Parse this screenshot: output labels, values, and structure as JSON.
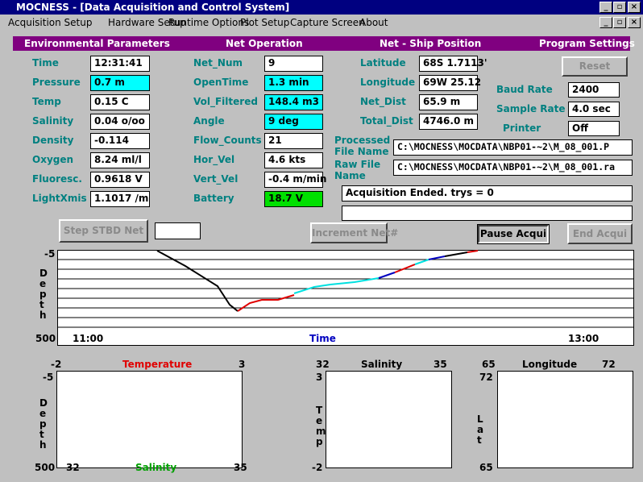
{
  "window": {
    "title": "MOCNESS - [Data Acquisition and Control System]"
  },
  "menu": [
    "Acquisition Setup",
    "Hardware Setup",
    "Runtime Options",
    "Plot Setup",
    "Capture Screen",
    "About"
  ],
  "sections": [
    "Environmental Parameters",
    "Net Operation",
    "Net - Ship Position",
    "Program Settings"
  ],
  "environmental": [
    {
      "label": "Time",
      "value": "12:31:41"
    },
    {
      "label": "Pressure",
      "value": "0.7 m"
    },
    {
      "label": "Temp",
      "value": "0.15 C"
    },
    {
      "label": "Salinity",
      "value": "0.04 o/oo"
    },
    {
      "label": "Density",
      "value": "-0.114"
    },
    {
      "label": "Oxygen",
      "value": "8.24 ml/l"
    },
    {
      "label": "Fluoresc.",
      "value": "0.9618 V"
    },
    {
      "label": "LightXmis",
      "value": "1.1017 /m"
    }
  ],
  "net_operation": [
    {
      "label": "Net_Num",
      "value": "9"
    },
    {
      "label": "OpenTime",
      "value": "1.3 min"
    },
    {
      "label": "Vol_Filtered",
      "value": "148.4 m3"
    },
    {
      "label": "Angle",
      "value": "9 deg"
    },
    {
      "label": "Flow_Counts",
      "value": "21"
    },
    {
      "label": "Hor_Vel",
      "value": "4.6 kts"
    },
    {
      "label": "Vert_Vel",
      "value": "-0.4 m/min"
    },
    {
      "label": "Battery",
      "value": "18.7 V"
    }
  ],
  "position": [
    {
      "label": "Latitude",
      "value": "68S 1.7113'"
    },
    {
      "label": "Longitude",
      "value": "69W 25.12"
    },
    {
      "label": "Net_Dist",
      "value": "65.9 m"
    },
    {
      "label": "Total_Dist",
      "value": "4746.0 m"
    }
  ],
  "settings": [
    {
      "label": "Baud Rate",
      "value": "2400"
    },
    {
      "label": "Sample Rate",
      "value": "4.0 sec"
    },
    {
      "label": "Printer",
      "value": "Off"
    }
  ],
  "files": [
    {
      "label": "Processed File Name",
      "value": "C:\\MOCNESS\\MOCDATA\\NBP01-~2\\M_08_001.P"
    },
    {
      "label": "Raw File Name",
      "value": "C:\\MOCNESS\\MOCDATA\\NBP01-~2\\M_08_001.ra"
    }
  ],
  "status": "Acquisition Ended.  trys = 0",
  "buttons": [
    "Reset",
    "Step STBD Net",
    "Increment Net#",
    "Pause Acqui",
    "End Acqui"
  ],
  "depth_plot": {
    "y_label": "Depth",
    "y_top": "-5",
    "y_bottom": "500",
    "x_left": "11:00",
    "x_label": "Time",
    "x_right": "13:00"
  },
  "profile_plot": {
    "top_left": "-2",
    "top_label": "Temperature",
    "top_right": "3",
    "y_top": "-5",
    "y_bottom": "500",
    "y_label": "Depth",
    "bottom_left": "32",
    "bottom_label": "Salinity",
    "bottom_right": "35"
  },
  "ts_plot": {
    "top_left": "32",
    "top_label": "Salinity",
    "top_right": "35",
    "y_top": "3",
    "y_bottom": "-2",
    "y_label": "Temp"
  },
  "track_plot": {
    "top_left": "65",
    "top_label": "Longitude",
    "top_right": "72",
    "y_top": "72",
    "y_bottom": "65",
    "y_label": "Lat"
  }
}
